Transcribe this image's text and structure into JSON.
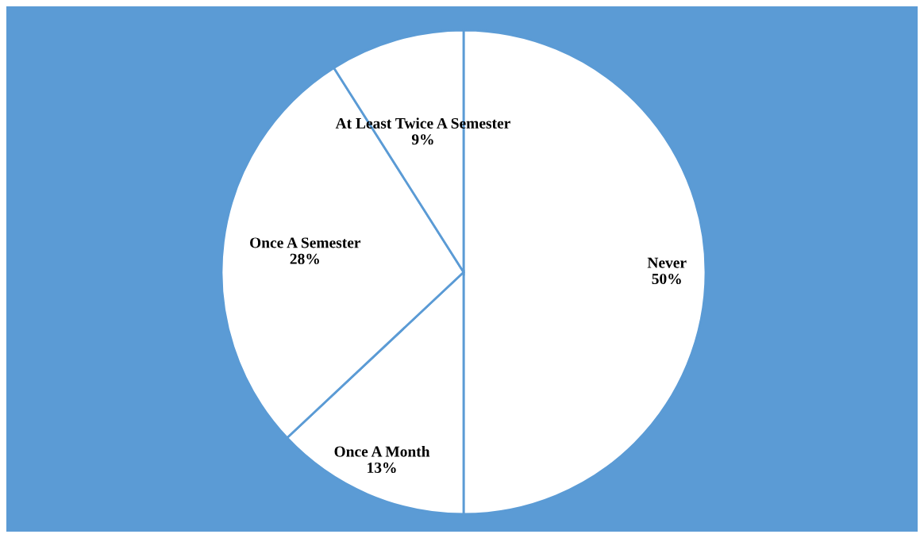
{
  "chart_data": {
    "type": "pie",
    "categories": [
      "Never",
      "Once A Month",
      "Once A Semester",
      "At Least Twice A Semester"
    ],
    "values": [
      50,
      13,
      28,
      9
    ],
    "value_labels": [
      "50%",
      "13%",
      "28%",
      "9%"
    ],
    "colors": [
      "#ffffff",
      "#ffffff",
      "#ffffff",
      "#ffffff"
    ],
    "legend": false
  }
}
